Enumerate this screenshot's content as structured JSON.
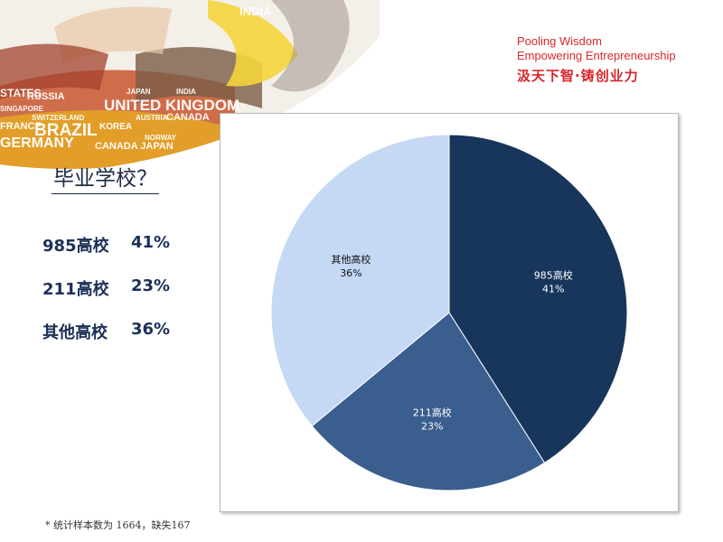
{
  "banner": {
    "words": [
      "INDIA",
      "BRAZIL",
      "RUSSIA",
      "UNITED KINGDOM",
      "JAPAN",
      "INDIA",
      "AUSTRIA",
      "CANADA",
      "KOREA",
      "SWITZERLAND",
      "GERMANY",
      "CANADA JAPAN",
      "NORWAY",
      "SINGAPORE",
      "FRANCE",
      "STATES"
    ]
  },
  "logo": {
    "line1": "Pooling Wisdom",
    "line2": "Empowering Entrepreneurship",
    "cn": "汲天下智·铸创业力"
  },
  "title": "毕业学校？",
  "stats": [
    {
      "label": "985高校",
      "value": "41%"
    },
    {
      "label": "211高校",
      "value": "23%"
    },
    {
      "label": "其他高校",
      "value": "36%"
    }
  ],
  "chart_data": {
    "type": "pie",
    "categories": [
      "985高校",
      "211高校",
      "其他高校"
    ],
    "values": [
      41,
      23,
      36
    ],
    "value_labels": [
      "41%",
      "23%",
      "36%"
    ],
    "colors": [
      "#18365c",
      "#3a5e8e",
      "#c5d8f4"
    ],
    "label_colors": [
      "#ffffff",
      "#ffffff",
      "#111111"
    ],
    "legend": "none"
  },
  "footnote": "* 统计样本数为 1664，缺失167"
}
